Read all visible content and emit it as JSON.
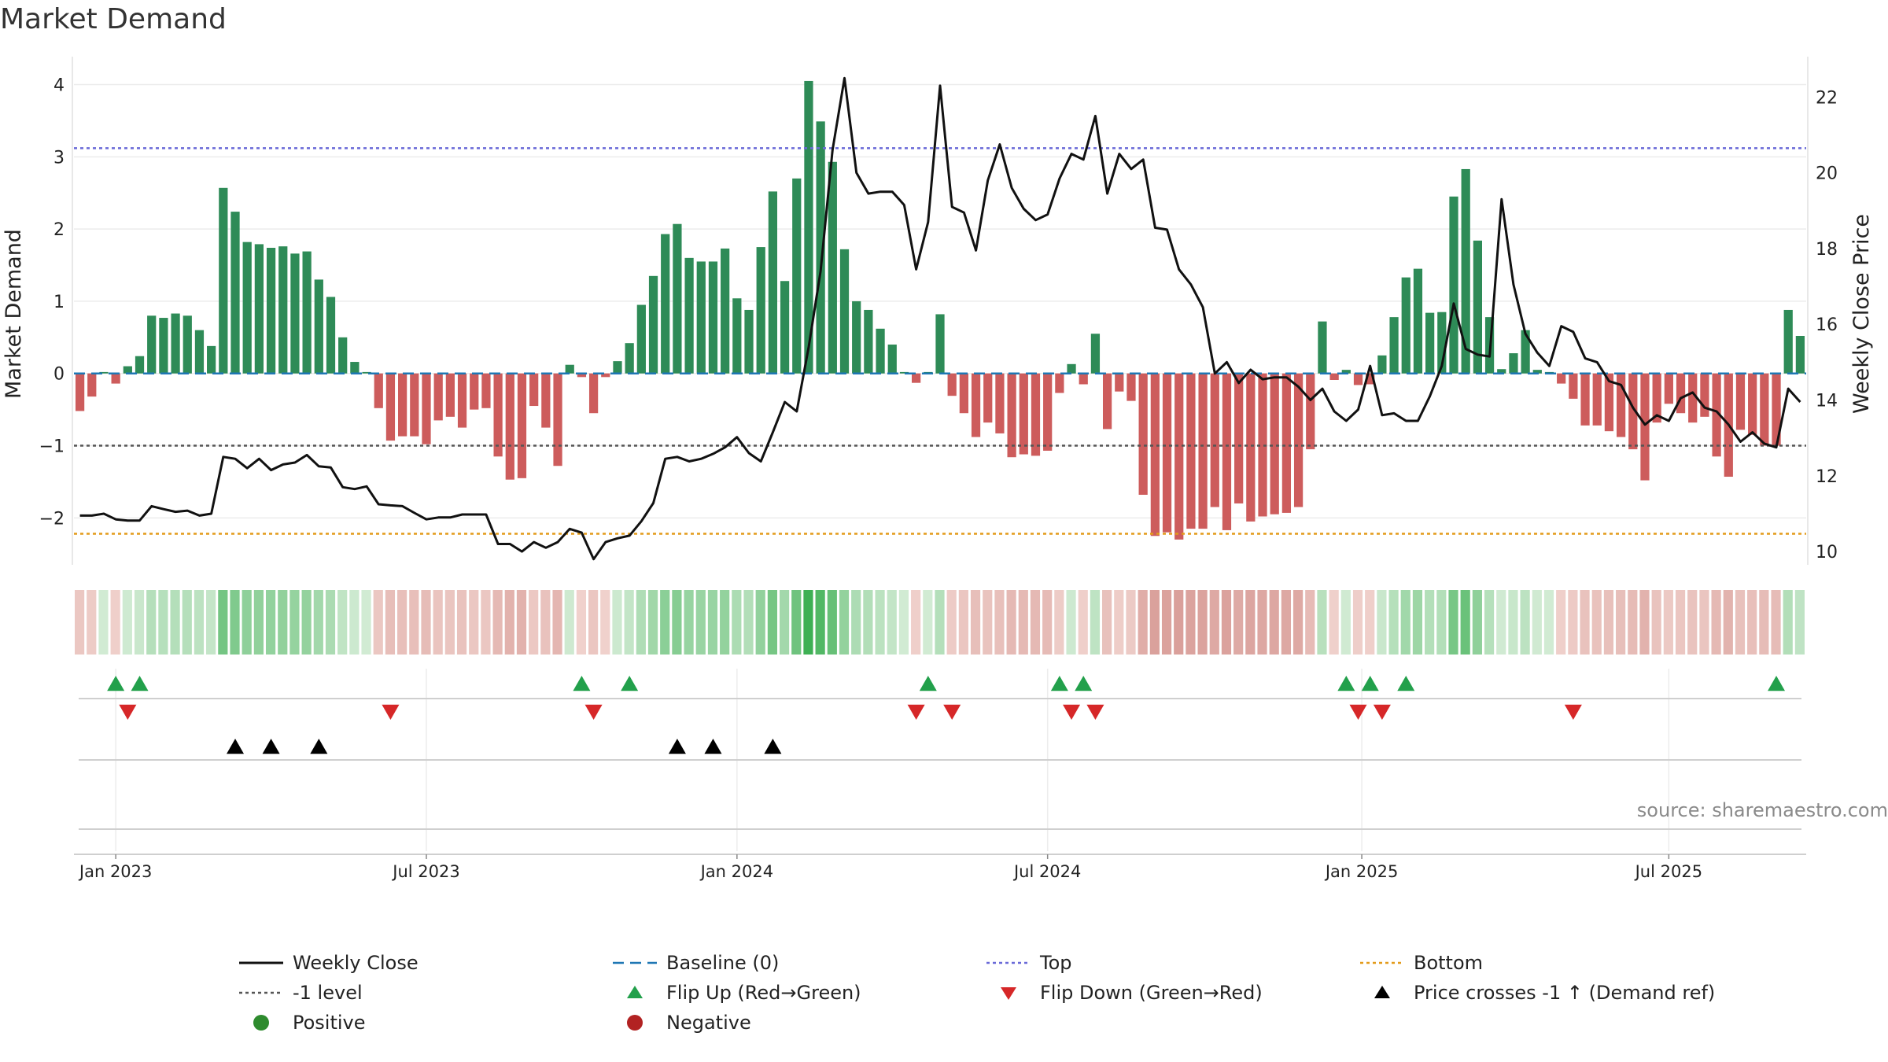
{
  "title": "Market Demand",
  "source": "source: sharemaestro.com",
  "colors": {
    "positive": "#2e8b57",
    "negative": "#cd5c5c",
    "price": "#111111",
    "baseline": "#1f77b4",
    "top": "#6a6ad8",
    "bottom": "#e39b1b",
    "minus1": "#555555",
    "flip_up": "#22a04b",
    "flip_down": "#d62728",
    "cross": "#000000"
  },
  "legend": {
    "weekly_close": "Weekly Close",
    "baseline": "Baseline (0)",
    "top": "Top",
    "bottom": "Bottom",
    "minus1": "-1 level",
    "flip_up": "Flip Up (Red→Green)",
    "flip_down": "Flip Down (Green→Red)",
    "price_cross": "Price crosses -1 ↑ (Demand ref)",
    "positive": "Positive",
    "negative": "Negative"
  },
  "chart_data": {
    "type": "bar+line",
    "title": "Market Demand",
    "ylabel_left": "Market Demand",
    "ylabel_right": "Weekly Close Price",
    "ylim_left": [
      -2.65,
      4.3
    ],
    "ylim_right": [
      9.65,
      22.9
    ],
    "yticks_left": [
      -2,
      -1,
      0,
      1,
      2,
      3,
      4
    ],
    "ytick_labels_left": [
      "−2",
      "−1",
      "0",
      "1",
      "2",
      "3",
      "4"
    ],
    "yticks_right": [
      10,
      12,
      14,
      16,
      18,
      20,
      22
    ],
    "ytick_labels_right": [
      "10",
      "12",
      "14",
      "16",
      "18",
      "20",
      "22"
    ],
    "reference_lines": {
      "baseline": 0,
      "top": 3.12,
      "bottom": -2.22,
      "minus1": -1
    },
    "x_start_week": -3,
    "x_ticks": [
      {
        "label": "Jan 2023",
        "week": 0
      },
      {
        "label": "Jul 2023",
        "week": 26
      },
      {
        "label": "Jan 2024",
        "week": 52
      },
      {
        "label": "Jul 2024",
        "week": 78
      },
      {
        "label": "Jan 2025",
        "week": 104.3
      },
      {
        "label": "Jul 2025",
        "week": 130
      }
    ],
    "demand": [
      -0.52,
      -0.32,
      0.02,
      -0.14,
      0.1,
      0.24,
      0.8,
      0.77,
      0.83,
      0.8,
      0.6,
      0.38,
      2.57,
      2.24,
      1.82,
      1.79,
      1.74,
      1.76,
      1.66,
      1.69,
      1.3,
      1.06,
      0.5,
      0.16,
      0.02,
      -0.48,
      -0.93,
      -0.87,
      -0.87,
      -0.98,
      -0.65,
      -0.6,
      -0.75,
      -0.5,
      -0.48,
      -1.15,
      -1.47,
      -1.45,
      -0.45,
      -0.75,
      -1.28,
      0.12,
      -0.05,
      -0.55,
      -0.05,
      0.17,
      0.42,
      0.95,
      1.35,
      1.93,
      2.07,
      1.6,
      1.55,
      1.55,
      1.73,
      1.04,
      0.88,
      1.75,
      2.52,
      1.28,
      2.7,
      4.05,
      3.49,
      2.93,
      1.72,
      1.0,
      0.88,
      0.62,
      0.4,
      0.02,
      -0.13,
      0.02,
      0.82,
      -0.31,
      -0.55,
      -0.88,
      -0.68,
      -0.83,
      -1.16,
      -1.12,
      -1.14,
      -1.07,
      -0.27,
      0.13,
      -0.15,
      0.55,
      -0.77,
      -0.25,
      -0.38,
      -1.68,
      -2.25,
      -2.2,
      -2.3,
      -2.15,
      -2.15,
      -1.85,
      -2.17,
      -1.8,
      -2.05,
      -1.98,
      -1.95,
      -1.93,
      -1.85,
      -1.05,
      0.72,
      -0.09,
      0.05,
      -0.16,
      -0.15,
      0.25,
      0.78,
      1.33,
      1.45,
      0.84,
      0.85,
      2.45,
      2.83,
      1.84,
      0.78,
      0.06,
      0.28,
      0.6,
      0.05,
      0.02,
      -0.14,
      -0.35,
      -0.72,
      -0.72,
      -0.8,
      -0.88,
      -1.05,
      -1.48,
      -0.68,
      -0.42,
      -0.55,
      -0.68,
      -0.6,
      -1.15,
      -1.43,
      -0.78,
      -0.85,
      -1.0,
      -1.0,
      0.88,
      0.52
    ],
    "price": [
      10.95,
      10.95,
      11.0,
      10.85,
      10.82,
      10.82,
      11.2,
      11.12,
      11.05,
      11.08,
      10.95,
      11.0,
      12.5,
      12.45,
      12.2,
      12.45,
      12.15,
      12.3,
      12.35,
      12.55,
      12.25,
      12.22,
      11.7,
      11.65,
      11.72,
      11.25,
      11.22,
      11.2,
      11.02,
      10.85,
      10.9,
      10.9,
      10.98,
      10.98,
      10.98,
      10.2,
      10.2,
      10.0,
      10.25,
      10.1,
      10.25,
      10.6,
      10.5,
      9.8,
      10.25,
      10.35,
      10.42,
      10.8,
      11.28,
      12.45,
      12.5,
      12.38,
      12.45,
      12.58,
      12.75,
      13.02,
      12.6,
      12.38,
      13.15,
      13.95,
      13.7,
      15.4,
      17.4,
      20.6,
      22.5,
      20.0,
      19.45,
      19.5,
      19.5,
      19.15,
      17.45,
      18.7,
      22.3,
      19.1,
      18.95,
      17.95,
      19.8,
      20.75,
      19.6,
      19.05,
      18.75,
      18.9,
      19.85,
      20.5,
      20.35,
      21.5,
      19.45,
      20.5,
      20.1,
      20.35,
      18.55,
      18.5,
      17.45,
      17.05,
      16.45,
      14.7,
      15.0,
      14.45,
      14.8,
      14.55,
      14.6,
      14.6,
      14.35,
      14.0,
      14.3,
      13.7,
      13.45,
      13.75,
      14.9,
      13.6,
      13.65,
      13.45,
      13.45,
      14.1,
      14.9,
      16.55,
      15.35,
      15.2,
      15.15,
      19.3,
      17.05,
      15.75,
      15.25,
      14.9,
      15.95,
      15.8,
      15.1,
      15.0,
      14.5,
      14.4,
      13.8,
      13.35,
      13.6,
      13.45,
      14.05,
      14.2,
      13.8,
      13.7,
      13.35,
      12.9,
      13.15,
      12.85,
      12.75,
      14.3,
      13.95
    ],
    "flip_up_weeks": [
      0,
      2,
      39,
      43,
      68,
      79,
      81,
      103,
      105,
      108,
      139
    ],
    "flip_down_weeks": [
      1,
      23,
      40,
      67,
      70,
      80,
      82,
      104,
      106,
      122
    ],
    "price_cross_weeks": [
      10,
      13,
      17,
      47,
      50,
      55
    ]
  },
  "axis_text": {
    "weekly_close_label": "Weekly Close Price",
    "market_demand_label": "Market Demand"
  }
}
